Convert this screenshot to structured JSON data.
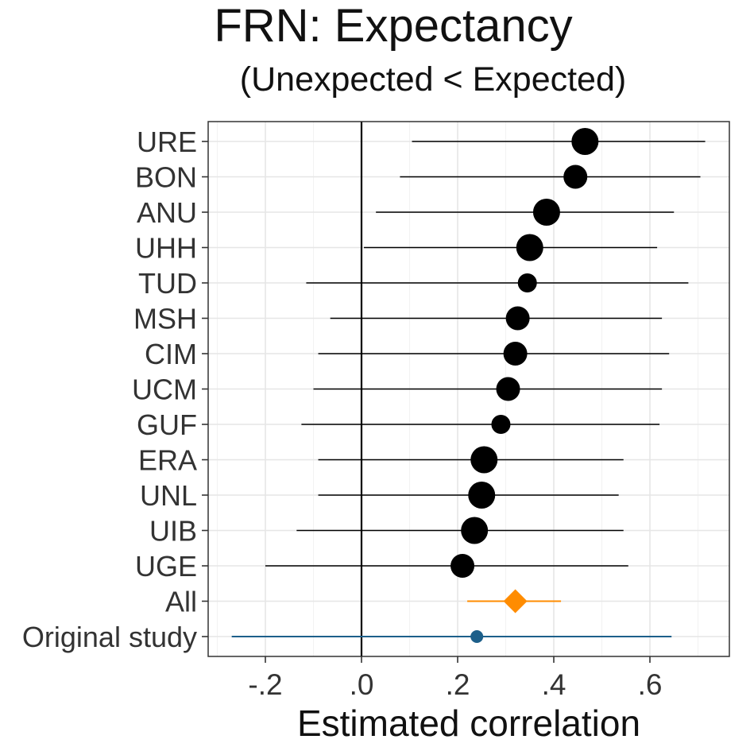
{
  "title": "FRN: Expectancy",
  "subtitle": "(Unexpected < Expected)",
  "colors": {
    "lab": "#000000",
    "all": "#ff8c00",
    "original": "#1d5f8a",
    "grid": "#e6e6e6",
    "panel_border": "#333333"
  },
  "chart_data": {
    "type": "scatter",
    "subtype": "forest-plot",
    "title": "FRN: Expectancy",
    "subtitle": "(Unexpected < Expected)",
    "xlabel": "Estimated correlation",
    "ylabel": "",
    "xlim": [
      -0.32,
      0.74
    ],
    "x_ticks": [
      -0.2,
      0.0,
      0.2,
      0.4,
      0.6
    ],
    "x_tick_labels": [
      "-.2",
      ".0",
      ".2",
      ".4",
      ".6"
    ],
    "reference_line": 0.0,
    "grid": true,
    "legend": "none",
    "rows": [
      {
        "label": "URE",
        "estimate": 0.465,
        "ci_low": 0.105,
        "ci_high": 0.715,
        "group": "lab",
        "size": "large"
      },
      {
        "label": "BON",
        "estimate": 0.445,
        "ci_low": 0.08,
        "ci_high": 0.705,
        "group": "lab",
        "size": "medium"
      },
      {
        "label": "ANU",
        "estimate": 0.385,
        "ci_low": 0.03,
        "ci_high": 0.65,
        "group": "lab",
        "size": "large"
      },
      {
        "label": "UHH",
        "estimate": 0.35,
        "ci_low": 0.005,
        "ci_high": 0.615,
        "group": "lab",
        "size": "large"
      },
      {
        "label": "TUD",
        "estimate": 0.345,
        "ci_low": -0.115,
        "ci_high": 0.68,
        "group": "lab",
        "size": "small"
      },
      {
        "label": "MSH",
        "estimate": 0.325,
        "ci_low": -0.065,
        "ci_high": 0.625,
        "group": "lab",
        "size": "medium"
      },
      {
        "label": "CIM",
        "estimate": 0.32,
        "ci_low": -0.09,
        "ci_high": 0.64,
        "group": "lab",
        "size": "medium"
      },
      {
        "label": "UCM",
        "estimate": 0.305,
        "ci_low": -0.1,
        "ci_high": 0.625,
        "group": "lab",
        "size": "medium"
      },
      {
        "label": "GUF",
        "estimate": 0.29,
        "ci_low": -0.125,
        "ci_high": 0.62,
        "group": "lab",
        "size": "small"
      },
      {
        "label": "ERA",
        "estimate": 0.255,
        "ci_low": -0.09,
        "ci_high": 0.545,
        "group": "lab",
        "size": "large"
      },
      {
        "label": "UNL",
        "estimate": 0.25,
        "ci_low": -0.09,
        "ci_high": 0.535,
        "group": "lab",
        "size": "large"
      },
      {
        "label": "UIB",
        "estimate": 0.235,
        "ci_low": -0.135,
        "ci_high": 0.545,
        "group": "lab",
        "size": "large"
      },
      {
        "label": "UGE",
        "estimate": 0.21,
        "ci_low": -0.2,
        "ci_high": 0.555,
        "group": "lab",
        "size": "medium"
      },
      {
        "label": "All",
        "estimate": 0.32,
        "ci_low": 0.22,
        "ci_high": 0.415,
        "group": "all",
        "size": "diamond"
      },
      {
        "label": "Original study",
        "estimate": 0.24,
        "ci_low": -0.27,
        "ci_high": 0.645,
        "group": "original",
        "size": "tiny"
      }
    ]
  }
}
